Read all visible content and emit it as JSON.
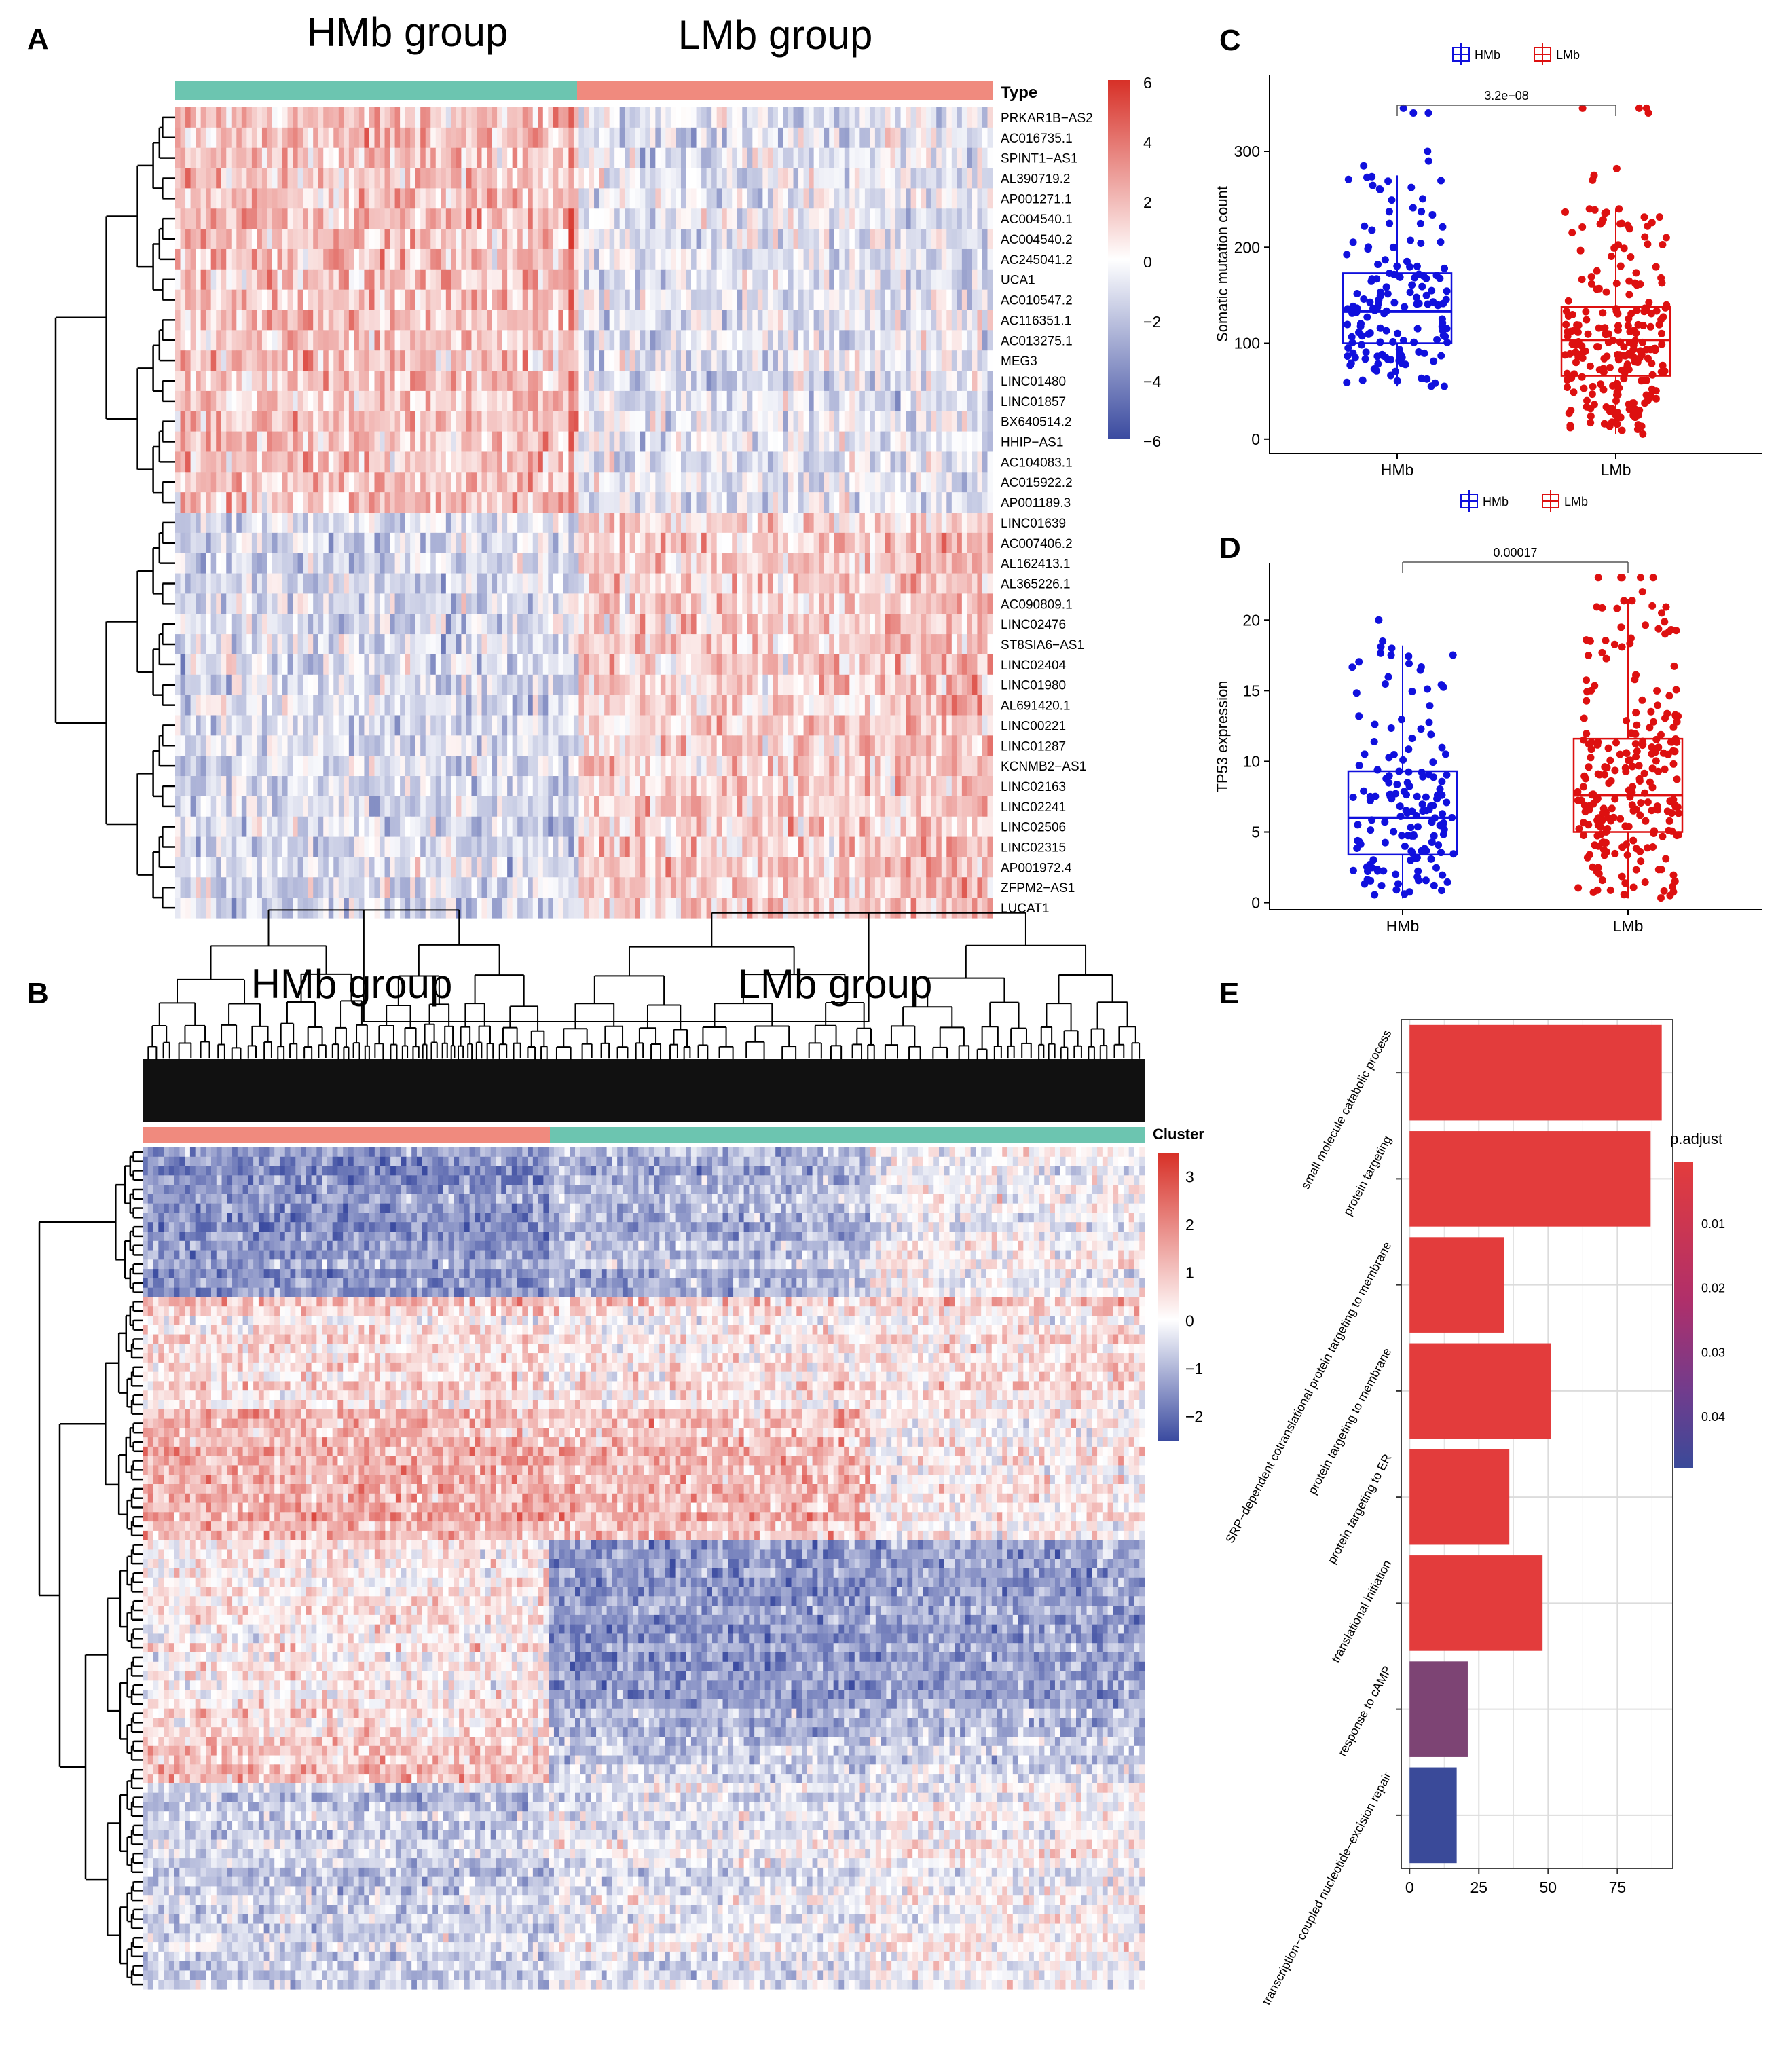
{
  "panels": {
    "a": "A",
    "b": "B",
    "c": "C",
    "d": "D",
    "e": "E"
  },
  "colors": {
    "heat_high": "#d73027",
    "heat_mid": "#ffffff",
    "heat_low": "#3b4ba0",
    "teal": "#6cc5b0",
    "salmon": "#f08a7e",
    "hmb": "#1010dd",
    "lmb": "#dd1010",
    "padj_low": "#e33c3c",
    "padj_high": "#3a4a99"
  },
  "chart_data": [
    {
      "id": "A",
      "type": "heatmap",
      "group_titles": [
        "HMb group",
        "LMb group"
      ],
      "annotation_title": "Type",
      "legend_ticks": [
        "6",
        "4",
        "2",
        "0",
        "−2",
        "−4",
        "−6"
      ],
      "legend_range": [
        -6,
        6
      ],
      "rows": [
        "PRKAR1B−AS2",
        "AC016735.1",
        "SPINT1−AS1",
        "AL390719.2",
        "AP001271.1",
        "AC004540.1",
        "AC004540.2",
        "AC245041.2",
        "UCA1",
        "AC010547.2",
        "AC116351.1",
        "AC013275.1",
        "MEG3",
        "LINC01480",
        "LINC01857",
        "BX640514.2",
        "HHIP−AS1",
        "AC104083.1",
        "AC015922.2",
        "AP001189.3",
        "LINC01639",
        "AC007406.2",
        "AL162413.1",
        "AL365226.1",
        "AC090809.1",
        "LINC02476",
        "ST8SIA6−AS1",
        "LINC02404",
        "LINC01980",
        "AL691420.1",
        "LINC00221",
        "LINC01287",
        "KCNMB2−AS1",
        "LINC02163",
        "LINC02241",
        "LINC02506",
        "LINC02315",
        "AP001972.4",
        "ZFPM2−AS1",
        "LUCAT1"
      ],
      "up_in_HMb_rows": 20
    },
    {
      "id": "B",
      "type": "heatmap",
      "group_titles": [
        "HMb group",
        "LMb group"
      ],
      "annotation_title": "Cluster",
      "legend_ticks": [
        "3",
        "2",
        "1",
        "0",
        "−1",
        "−2"
      ],
      "legend_range": [
        -2.5,
        3.5
      ]
    },
    {
      "id": "C",
      "type": "box",
      "legend": [
        "HMb",
        "LMb"
      ],
      "categories": [
        "HMb",
        "LMb"
      ],
      "ylabel": "Somatic mutation count",
      "ylim": [
        -15,
        380
      ],
      "yticks": [
        0,
        100,
        200,
        300
      ],
      "pvalue": "3.2e−08",
      "boxes": [
        {
          "name": "HMb",
          "min": 55,
          "q1": 100,
          "median": 133,
          "q3": 173,
          "max": 275
        },
        {
          "name": "LMb",
          "min": 5,
          "q1": 66,
          "median": 103,
          "q3": 138,
          "max": 240
        }
      ]
    },
    {
      "id": "D",
      "type": "box",
      "legend": [
        "HMb",
        "LMb"
      ],
      "categories": [
        "HMb",
        "LMb"
      ],
      "ylabel": "TP53 expression",
      "ylim": [
        -0.5,
        24
      ],
      "yticks": [
        0,
        5,
        10,
        15,
        20
      ],
      "pvalue": "0.00017",
      "boxes": [
        {
          "name": "HMb",
          "min": 0.3,
          "q1": 3.4,
          "median": 6.0,
          "q3": 9.3,
          "max": 18.2
        },
        {
          "name": "LMb",
          "min": 0.3,
          "q1": 5.0,
          "median": 7.6,
          "q3": 11.6,
          "max": 21.5
        }
      ]
    },
    {
      "id": "E",
      "type": "bar",
      "orientation": "horizontal",
      "categories": [
        "small molecule catabolic process",
        "protein targeting",
        "SRP−dependent cotranslational protein targeting to membrane",
        "protein targeting to membrane",
        "protein targeting to ER",
        "translational initiation",
        "response to cAMP",
        "transcription−coupled nucleotide−excision repair"
      ],
      "values": [
        91,
        87,
        34,
        51,
        36,
        48,
        21,
        17
      ],
      "padjust": [
        0.002,
        0.002,
        0.002,
        0.002,
        0.002,
        0.002,
        0.028,
        0.045
      ],
      "xlim": [
        -3,
        95
      ],
      "xticks": [
        "0",
        "25",
        "50",
        "75"
      ],
      "legend_title": "p.adjust",
      "legend_ticks": [
        "0.01",
        "0.02",
        "0.03",
        "0.04"
      ]
    }
  ]
}
